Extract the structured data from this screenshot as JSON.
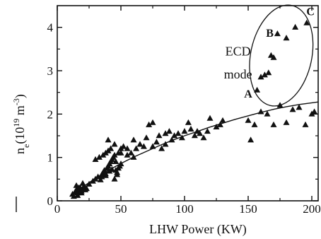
{
  "chart_data": {
    "type": "scatter",
    "xlabel": "LHW Power  (KW)",
    "ylabel": "n",
    "ylabel_sub": "e",
    "ylabel_paren_open": "(",
    "ylabel_exp_base": "10",
    "ylabel_exp": "19",
    "ylabel_unit": " m",
    "ylabel_unit_exp": "-3",
    "ylabel_paren_close": ")",
    "xlim": [
      0,
      205
    ],
    "ylim": [
      0,
      4.5
    ],
    "x_ticks": [
      0,
      50,
      100,
      150,
      200
    ],
    "y_ticks": [
      0,
      1,
      2,
      3,
      4
    ],
    "marker": "triangle",
    "marker_color": "#111111",
    "fit_curve": {
      "x": [
        10,
        20,
        30,
        40,
        50,
        60,
        70,
        80,
        90,
        100,
        110,
        120,
        130,
        140,
        150,
        160,
        170,
        180,
        190,
        200,
        205
      ],
      "y": [
        0.1,
        0.32,
        0.52,
        0.7,
        0.86,
        1.01,
        1.14,
        1.27,
        1.39,
        1.5,
        1.6,
        1.7,
        1.79,
        1.88,
        1.96,
        2.04,
        2.11,
        2.17,
        2.22,
        2.26,
        2.28
      ]
    },
    "series": [
      {
        "x": [
          12,
          14,
          15,
          16,
          17,
          18,
          19,
          20,
          21,
          22,
          15,
          18,
          20,
          23,
          13,
          16,
          19,
          22,
          25,
          28,
          30,
          32,
          34,
          35,
          36,
          37,
          38,
          39,
          40,
          41,
          42,
          43,
          44,
          45,
          46,
          47,
          48,
          49,
          50,
          30,
          33,
          36,
          38,
          40,
          42,
          44,
          46,
          48,
          50,
          52,
          35,
          38,
          41,
          43,
          45,
          47,
          49,
          55,
          58,
          60,
          62,
          65,
          68,
          70,
          72,
          75,
          78,
          80,
          82,
          85,
          88,
          90,
          92,
          95,
          98,
          100,
          103,
          105,
          108,
          110,
          112,
          115,
          118,
          120,
          125,
          128,
          130,
          150,
          152,
          155,
          160,
          165,
          170,
          175,
          180,
          185,
          190,
          195,
          200,
          202,
          40,
          45,
          50,
          55,
          60,
          75,
          85
        ],
        "y": [
          0.15,
          0.2,
          0.25,
          0.12,
          0.3,
          0.22,
          0.18,
          0.28,
          0.33,
          0.25,
          0.35,
          0.3,
          0.4,
          0.28,
          0.1,
          0.18,
          0.22,
          0.3,
          0.38,
          0.45,
          0.5,
          0.55,
          0.48,
          0.6,
          0.65,
          0.7,
          0.58,
          0.75,
          0.8,
          0.85,
          0.9,
          0.95,
          1.0,
          1.05,
          0.7,
          0.6,
          0.75,
          0.8,
          0.85,
          0.95,
          1.0,
          1.05,
          1.1,
          1.15,
          1.2,
          1.0,
          0.9,
          1.1,
          1.2,
          1.25,
          0.55,
          0.62,
          0.68,
          0.72,
          0.5,
          0.65,
          0.8,
          1.05,
          1.1,
          1.0,
          1.2,
          1.3,
          1.25,
          1.45,
          1.75,
          1.8,
          1.35,
          1.5,
          1.2,
          1.55,
          1.6,
          1.4,
          1.5,
          1.55,
          1.45,
          1.6,
          1.8,
          1.65,
          1.5,
          1.6,
          1.55,
          1.45,
          1.6,
          1.9,
          1.7,
          1.75,
          1.85,
          1.85,
          1.4,
          1.75,
          2.05,
          2.0,
          1.75,
          2.2,
          1.8,
          2.1,
          2.15,
          1.75,
          2.0,
          2.05,
          1.4,
          1.3,
          1.1,
          1.2,
          1.4,
          1.25,
          1.3
        ]
      },
      {
        "x": [
          157,
          160,
          163,
          166,
          168,
          170,
          173,
          180,
          187,
          196
        ],
        "y": [
          2.55,
          2.85,
          2.9,
          2.95,
          3.35,
          3.3,
          3.85,
          3.75,
          4.0,
          4.1
        ]
      }
    ],
    "annotations": [
      {
        "text": "ECD",
        "x": 142,
        "y": 3.35
      },
      {
        "text": "mode",
        "x": 142,
        "y": 2.82
      },
      {
        "text": "A",
        "x": 150,
        "y": 2.38
      },
      {
        "text": "B",
        "x": 167,
        "y": 3.78
      },
      {
        "text": "C",
        "x": 199,
        "y": 4.28
      }
    ],
    "ellipse": {
      "cx": 176,
      "cy": 3.35,
      "rx": 24,
      "ry": 1.18
    }
  }
}
